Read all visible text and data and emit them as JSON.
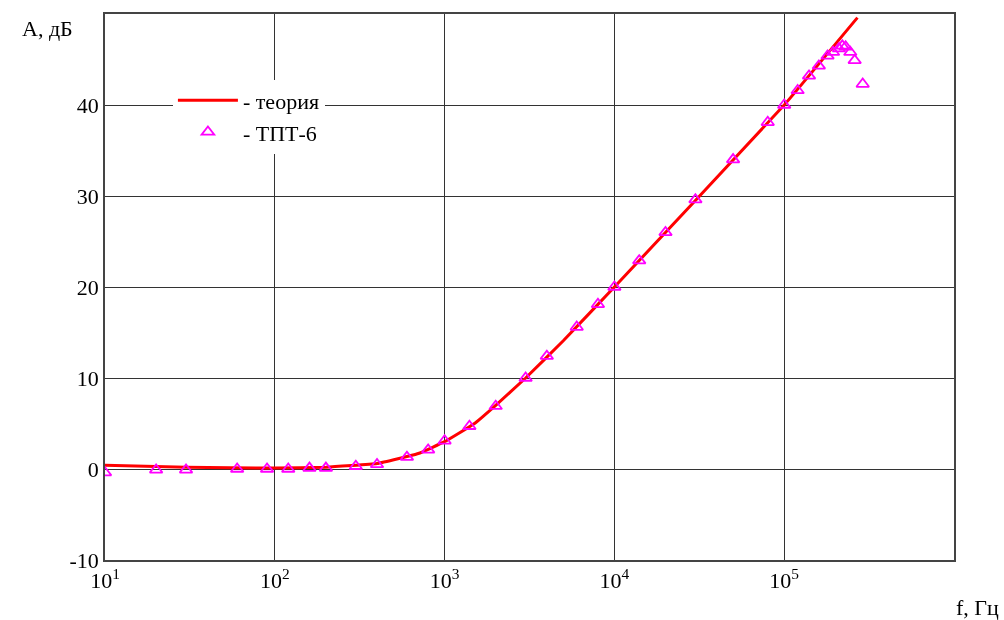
{
  "chart_data": {
    "type": "scatter",
    "xlabel": "f, Гц",
    "ylabel": "A, дБ",
    "log": "x",
    "xlim": [
      10,
      1000000
    ],
    "xticks": [
      {
        "value": 10,
        "label": "10$^{1}$"
      },
      {
        "value": 100,
        "label": "10$^{2}$"
      },
      {
        "value": 1000,
        "label": "10$^{3}$"
      },
      {
        "value": 10000,
        "label": "10$^{4}$"
      },
      {
        "value": 100000,
        "label": "10$^{5}$"
      },
      {
        "value": 1000000,
        "label": null
      }
    ],
    "ylim": [
      -10,
      50
    ],
    "yticks": [
      -10,
      0,
      10,
      20,
      30,
      40,
      {
        "value": 50,
        "label": null
      }
    ],
    "grid": true,
    "legend": "top left",
    "series": [
      {
        "name": "- теория",
        "type": "line",
        "color": "#ff0000",
        "marker": "none",
        "line_style": "solid",
        "x": [
          10,
          30,
          100,
          200,
          400,
          700,
          1000,
          1500,
          2000,
          3000,
          5000,
          10000,
          100000,
          270000
        ],
        "values": [
          0.4,
          0.2,
          0.1,
          0.2,
          0.6,
          1.7,
          3,
          5,
          7,
          10,
          14.1,
          20,
          40,
          49.6
        ]
      },
      {
        "name": "- ТПТ-6",
        "color": "#ff00ff",
        "marker": "triangle",
        "x": [
          10,
          20,
          30,
          60,
          90,
          120,
          160,
          200,
          300,
          400,
          600,
          800,
          1000,
          1400,
          2000,
          3000,
          4000,
          6000,
          8000,
          10000,
          14000,
          20000,
          30000,
          50000,
          80000,
          100000,
          120000,
          140000,
          160000,
          180000,
          194000,
          210000,
          220000,
          230000,
          245000,
          260000,
          290000
        ],
        "values": [
          -0.4,
          -0.1,
          -0.1,
          0,
          0,
          0,
          0.1,
          0.1,
          0.3,
          0.5,
          1.3,
          2.1,
          3.1,
          4.7,
          6.9,
          10,
          12.4,
          15.6,
          18.1,
          20,
          22.9,
          26,
          29.6,
          34,
          38.1,
          40,
          41.6,
          43.2,
          44.3,
          45.4,
          45.8,
          46.2,
          46.5,
          46.4,
          45.8,
          44.9,
          42.3
        ]
      }
    ]
  }
}
